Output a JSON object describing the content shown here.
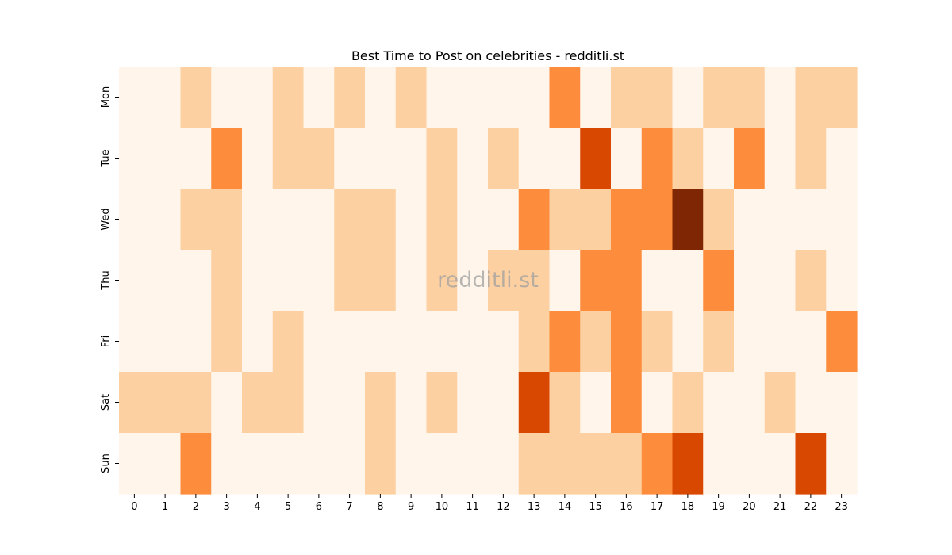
{
  "chart_data": {
    "type": "heatmap",
    "title": "Best Time to Post on celebrities - redditli.st",
    "watermark": "redditli.st",
    "xlabel": "",
    "ylabel": "",
    "x_categories": [
      "0",
      "1",
      "2",
      "3",
      "4",
      "5",
      "6",
      "7",
      "8",
      "9",
      "10",
      "11",
      "12",
      "13",
      "14",
      "15",
      "16",
      "17",
      "18",
      "19",
      "20",
      "21",
      "22",
      "23"
    ],
    "y_categories": [
      "Mon",
      "Tue",
      "Wed",
      "Thu",
      "Fri",
      "Sat",
      "Sun"
    ],
    "values": [
      [
        0,
        0,
        1,
        0,
        0,
        1,
        0,
        1,
        0,
        1,
        0,
        0,
        0,
        0,
        2,
        0,
        1,
        1,
        0,
        1,
        1,
        0,
        1,
        1
      ],
      [
        0,
        0,
        0,
        2,
        0,
        1,
        1,
        0,
        0,
        0,
        1,
        0,
        1,
        0,
        0,
        3,
        0,
        2,
        1,
        0,
        2,
        0,
        1,
        0
      ],
      [
        0,
        0,
        1,
        1,
        0,
        0,
        0,
        1,
        1,
        0,
        1,
        0,
        0,
        2,
        1,
        1,
        2,
        2,
        4,
        1,
        0,
        0,
        0,
        0
      ],
      [
        0,
        0,
        0,
        1,
        0,
        0,
        0,
        1,
        1,
        0,
        1,
        0,
        1,
        1,
        0,
        2,
        2,
        0,
        0,
        2,
        0,
        0,
        1,
        0
      ],
      [
        0,
        0,
        0,
        1,
        0,
        1,
        0,
        0,
        0,
        0,
        0,
        0,
        0,
        1,
        2,
        1,
        2,
        1,
        0,
        1,
        0,
        0,
        0,
        2
      ],
      [
        1,
        1,
        1,
        0,
        1,
        1,
        0,
        0,
        1,
        0,
        1,
        0,
        0,
        3,
        1,
        0,
        2,
        0,
        1,
        0,
        0,
        1,
        0,
        0
      ],
      [
        0,
        0,
        2,
        0,
        0,
        0,
        0,
        0,
        1,
        0,
        0,
        0,
        0,
        1,
        1,
        1,
        1,
        2,
        3,
        0,
        0,
        0,
        3,
        0
      ]
    ],
    "colorscale": [
      "#fff5eb",
      "#fdd0a2",
      "#fd8d3c",
      "#d94801",
      "#7f2704"
    ],
    "colorbar": false,
    "grid": false
  }
}
